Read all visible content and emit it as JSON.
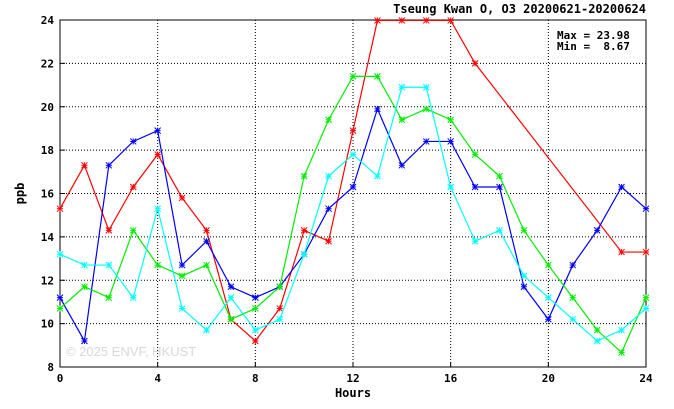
{
  "chart_data": {
    "type": "line",
    "title": "Tseung Kwan O, O3 20200621-20200624",
    "xlabel": "Hours",
    "ylabel": "ppb",
    "xlim": [
      0,
      24
    ],
    "ylim": [
      8,
      24
    ],
    "x_ticks": [
      0,
      4,
      8,
      12,
      16,
      20,
      24
    ],
    "y_ticks": [
      8,
      10,
      12,
      14,
      16,
      18,
      20,
      22,
      24
    ],
    "grid": true,
    "legend": "none",
    "max_label": "Max = 23.98",
    "min_label": "Min =  8.67",
    "watermark": "© 2025 ENVF, HKUST",
    "x": [
      0,
      1,
      2,
      3,
      4,
      5,
      6,
      7,
      8,
      9,
      10,
      11,
      12,
      13,
      14,
      15,
      16,
      17,
      18,
      19,
      20,
      21,
      22,
      23,
      24
    ],
    "series": [
      {
        "color": "#ff0000",
        "values": [
          15.3,
          17.3,
          14.3,
          16.3,
          17.8,
          15.8,
          14.3,
          10.2,
          9.2,
          10.7,
          14.3,
          13.8,
          18.9,
          23.98,
          23.98,
          23.98,
          23.98,
          22.0,
          null,
          null,
          null,
          null,
          null,
          13.3,
          13.3
        ]
      },
      {
        "color": "#0000ff",
        "values": [
          11.2,
          9.2,
          17.3,
          18.4,
          18.9,
          12.7,
          13.8,
          11.7,
          11.2,
          11.7,
          13.2,
          15.3,
          16.3,
          19.9,
          17.3,
          18.4,
          18.4,
          16.3,
          16.3,
          11.7,
          10.2,
          12.7,
          14.3,
          16.3,
          15.3
        ]
      },
      {
        "color": "#00ee00",
        "values": [
          10.7,
          11.7,
          11.2,
          14.3,
          12.7,
          12.2,
          12.7,
          10.2,
          10.7,
          11.7,
          16.8,
          19.4,
          21.4,
          21.4,
          19.4,
          19.9,
          19.4,
          17.8,
          16.8,
          14.3,
          12.7,
          11.2,
          9.7,
          8.67,
          11.2
        ]
      },
      {
        "color": "#00ffff",
        "values": [
          13.2,
          12.7,
          12.7,
          11.2,
          15.3,
          10.7,
          9.7,
          11.2,
          9.7,
          10.2,
          13.2,
          16.8,
          17.8,
          16.8,
          20.9,
          20.9,
          16.3,
          13.8,
          14.3,
          12.2,
          11.2,
          10.2,
          9.2,
          9.7,
          10.7
        ]
      }
    ]
  }
}
